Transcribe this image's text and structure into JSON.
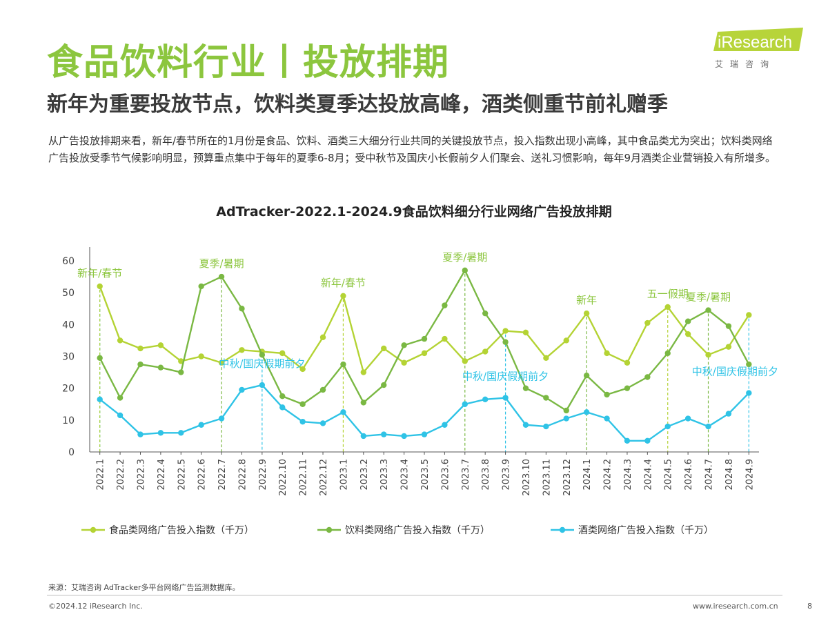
{
  "header": {
    "title": "食品饮料行业丨投放排期",
    "subtitle": "新年为重要投放节点，饮料类夏季达投放高峰，酒类侧重节前礼赠季",
    "intro": "从广告投放排期来看，新年/春节所在的1月份是食品、饮料、酒类三大细分行业共同的关键投放节点，投入指数出现小高峰，其中食品类尤为突出；饮料类网络广告投放受季节气候影响明显，预算重点集中于每年的夏季6-8月；受中秋节及国庆小长假前夕人们聚会、送礼习惯影响，每年9月酒类企业营销投入有所增多。"
  },
  "logo": {
    "brand": "iResearch",
    "sub": "艾瑞咨询"
  },
  "colors": {
    "title": "#8cc63e",
    "food": "#b4d334",
    "beverage": "#7ab843",
    "liquor": "#2fc3e6"
  },
  "chart_data": {
    "type": "line",
    "title": "AdTracker-2022.1-2024.9食品饮料细分行业网络广告投放排期",
    "x": [
      "2022.1",
      "2022.2",
      "2022.3",
      "2022.4",
      "2022.5",
      "2022.6",
      "2022.7",
      "2022.8",
      "2022.9",
      "2022.10",
      "2022.11",
      "2022.12",
      "2023.1",
      "2023.2",
      "2023.3",
      "2023.4",
      "2023.5",
      "2023.6",
      "2023.7",
      "2023.8",
      "2023.9",
      "2023.10",
      "2023.11",
      "2023.12",
      "2024.1",
      "2024.2",
      "2024.3",
      "2024.4",
      "2024.5",
      "2024.6",
      "2024.7",
      "2024.8",
      "2024.9"
    ],
    "ylim": [
      0,
      60
    ],
    "yticks": [
      0,
      10,
      20,
      30,
      40,
      50,
      60
    ],
    "grid": false,
    "legend_position": "bottom",
    "series": [
      {
        "name": "食品类网络广告投入指数（千万）",
        "color": "#b4d334",
        "values": [
          52,
          35,
          32.5,
          33.5,
          28.5,
          30,
          28,
          32,
          31.5,
          31,
          26,
          36,
          49,
          25,
          32.5,
          28,
          31,
          35.5,
          28.5,
          31.5,
          38,
          37.5,
          29.5,
          35,
          43.5,
          31,
          28,
          40.5,
          45.5,
          37,
          30.5,
          33,
          43
        ]
      },
      {
        "name": "饮料类网络广告投入指数（千万）",
        "color": "#7ab843",
        "values": [
          29.5,
          17,
          27.5,
          26.5,
          25,
          52,
          55,
          45,
          30.5,
          17.5,
          15,
          19.5,
          27.5,
          15.5,
          21,
          33.5,
          35.5,
          46,
          57,
          43.5,
          34.5,
          20,
          17,
          13,
          24,
          18,
          20,
          23.5,
          31,
          41,
          44.5,
          39.5,
          27.5
        ]
      },
      {
        "name": "酒类网络广告投入指数（千万）",
        "color": "#2fc3e6",
        "values": [
          16.5,
          11.5,
          5.5,
          6,
          6,
          8.5,
          10.5,
          19.5,
          21,
          14,
          9.5,
          9,
          12.5,
          5,
          5.5,
          5,
          5.5,
          8.5,
          15,
          16.5,
          17,
          8.5,
          8,
          10.5,
          12.5,
          10.5,
          3.5,
          3.5,
          8,
          10.5,
          8,
          12,
          18.5
        ]
      }
    ],
    "annotations": [
      {
        "text": "新年/春节",
        "x_index": 0,
        "color": "#8cc63e"
      },
      {
        "text": "夏季/暑期",
        "x_index": 6,
        "color": "#8cc63e"
      },
      {
        "text": "中秋/国庆假期前夕",
        "x_index": 8,
        "color": "#2fc3e6"
      },
      {
        "text": "新年/春节",
        "x_index": 12,
        "color": "#8cc63e"
      },
      {
        "text": "夏季/暑期",
        "x_index": 18,
        "color": "#8cc63e"
      },
      {
        "text": "中秋/国庆假期前夕",
        "x_index": 20,
        "color": "#2fc3e6"
      },
      {
        "text": "新年",
        "x_index": 24,
        "color": "#8cc63e"
      },
      {
        "text": "五一假期",
        "x_index": 28,
        "color": "#8cc63e"
      },
      {
        "text": "夏季/暑期",
        "x_index": 30,
        "color": "#8cc63e"
      },
      {
        "text": "中秋/国庆假期前夕",
        "x_index": 32,
        "color": "#2fc3e6"
      }
    ],
    "vlines": [
      {
        "x_index": 0,
        "color": "#2fc3e6"
      },
      {
        "x_index": 0,
        "color": "#b4d334"
      },
      {
        "x_index": 6,
        "color": "#7ab843"
      },
      {
        "x_index": 8,
        "color": "#2fc3e6"
      },
      {
        "x_index": 12,
        "color": "#b4d334"
      },
      {
        "x_index": 18,
        "color": "#7ab843"
      },
      {
        "x_index": 20,
        "color": "#2fc3e6"
      },
      {
        "x_index": 24,
        "color": "#7ab843"
      },
      {
        "x_index": 28,
        "color": "#b4d334"
      },
      {
        "x_index": 30,
        "color": "#7ab843"
      },
      {
        "x_index": 32,
        "color": "#2fc3e6"
      }
    ]
  },
  "footer": {
    "source": "来源：艾瑞咨询 AdTracker多平台网络广告监测数据库。",
    "copyright": "©2024.12 iResearch Inc.",
    "website": "www.iresearch.com.cn",
    "page": "8"
  }
}
